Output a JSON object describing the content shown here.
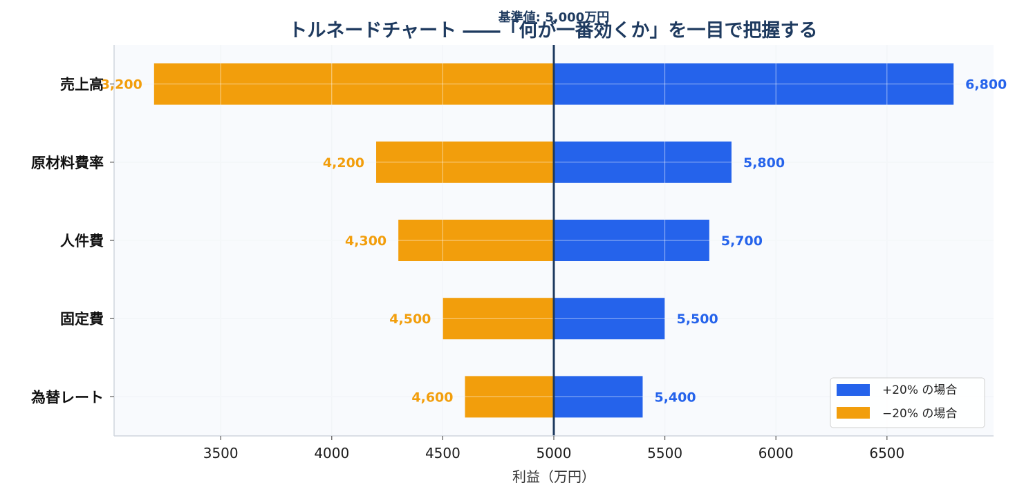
{
  "colors": {
    "plus": "#2563eb",
    "minus": "#f29e0c",
    "baseline": "#1e3a5f",
    "plot_bg": "#f8fafd",
    "grid": "#e3e8ef"
  },
  "chart_data": {
    "type": "bar",
    "orientation": "horizontal",
    "title": "トルネードチャート ――「何が一番効くか」を一目で把握する",
    "xlabel": "利益（万円）",
    "baseline": 5000,
    "baseline_label": "基準値: 5,000万円",
    "xlim": [
      3020,
      6980
    ],
    "xticks": [
      3500,
      4000,
      4500,
      5000,
      5500,
      6000,
      6500
    ],
    "categories": [
      "売上高",
      "原材料費率",
      "人件費",
      "固定費",
      "為替レート"
    ],
    "series": [
      {
        "name": "+20% の場合",
        "values": [
          6800,
          5800,
          5700,
          5500,
          5400
        ],
        "labels": [
          "6,800",
          "5,800",
          "5,700",
          "5,500",
          "5,400"
        ]
      },
      {
        "name": "−20% の場合",
        "values": [
          3200,
          4200,
          4300,
          4500,
          4600
        ],
        "labels": [
          "3,200",
          "4,200",
          "4,300",
          "4,500",
          "4,600"
        ]
      }
    ],
    "grid": true,
    "legend_position": "bottom-right"
  }
}
